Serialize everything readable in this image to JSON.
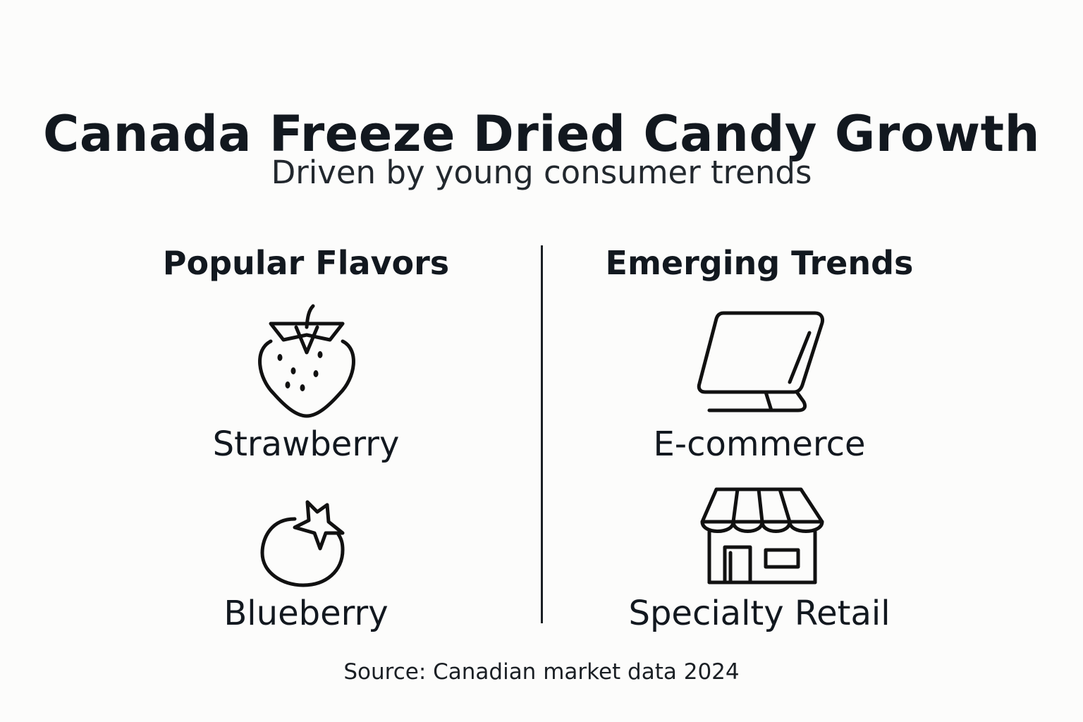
{
  "title": "Canada Freeze Dried Candy Growth",
  "subtitle": "Driven by young consumer trends",
  "left_column": {
    "heading": "Popular Flavors",
    "items": [
      {
        "label": "Strawberry",
        "icon": "strawberry-icon"
      },
      {
        "label": "Blueberry",
        "icon": "blueberry-icon"
      }
    ]
  },
  "right_column": {
    "heading": "Emerging Trends",
    "items": [
      {
        "label": "E-commerce",
        "icon": "tablet-icon"
      },
      {
        "label": "Specialty Retail",
        "icon": "storefront-icon"
      }
    ]
  },
  "source": "Source: Canadian market data 2024",
  "colors": {
    "background": "#fcfcfb",
    "text": "#12181f",
    "line": "#1a1f24"
  }
}
